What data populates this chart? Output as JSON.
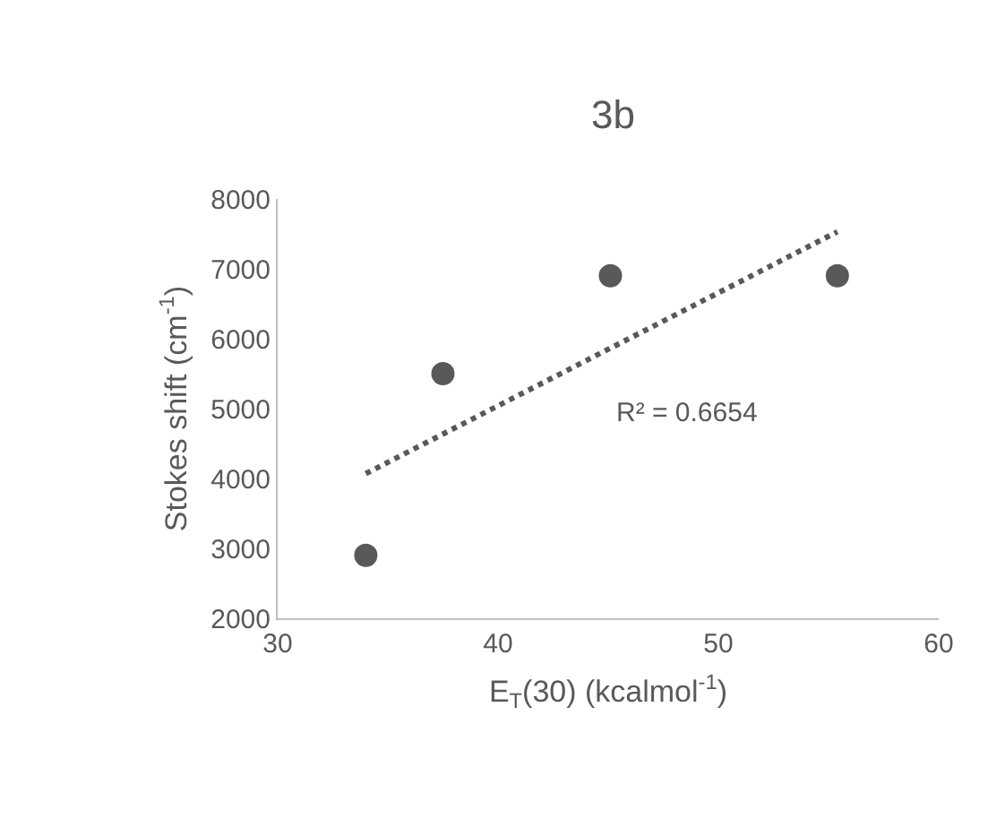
{
  "chart_data": {
    "type": "scatter",
    "title": "3b",
    "xlabel": "E$_{T}$(30) (kcalmol$^{-1}$)",
    "ylabel": "Stokes shift (cm$^{-1}$)",
    "xlim": [
      30,
      60
    ],
    "xticks": [
      30,
      40,
      50,
      60
    ],
    "ylim": [
      2000,
      8000
    ],
    "yticks": [
      2000,
      3000,
      4000,
      5000,
      6000,
      7000,
      8000
    ],
    "grid": false,
    "marker": "circle",
    "series": [
      {
        "color": "#595959",
        "x": [
          34.0,
          37.5,
          45.1,
          55.4
        ],
        "values": [
          2900,
          5500,
          6900,
          6900
        ]
      },
      {
        "type": "line",
        "color": "#595959",
        "line_style": "dotted",
        "marker": "none",
        "x": [
          34.0,
          55.4
        ],
        "values": [
          4070,
          7530
        ]
      }
    ],
    "annotations": [
      "R² = 0.6654"
    ]
  }
}
